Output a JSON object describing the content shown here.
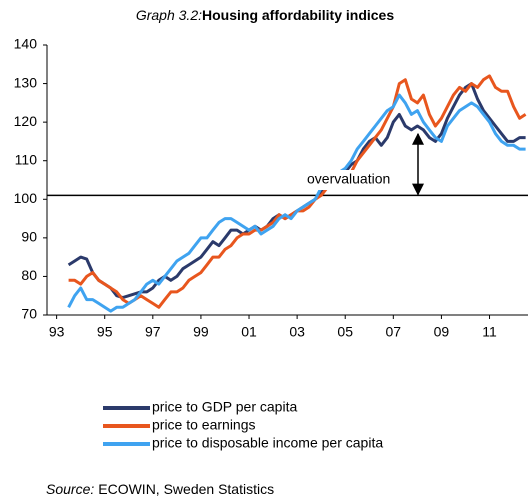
{
  "chart_data": {
    "type": "line",
    "graph_label": "Graph 3.2:",
    "title": "Housing affordability indices",
    "annotation": "overvaluation",
    "source_label": "Source:",
    "source": "ECOWIN, Sweden Statistics",
    "reference_line": 101,
    "xlim": [
      1992.6,
      2012.6
    ],
    "xticks": [
      {
        "value": 1993,
        "label": "93"
      },
      {
        "value": 1995,
        "label": "95"
      },
      {
        "value": 1997,
        "label": "97"
      },
      {
        "value": 1999,
        "label": "99"
      },
      {
        "value": 2001,
        "label": "01"
      },
      {
        "value": 2003,
        "label": "03"
      },
      {
        "value": 2005,
        "label": "05"
      },
      {
        "value": 2007,
        "label": "07"
      },
      {
        "value": 2009,
        "label": "09"
      },
      {
        "value": 2011,
        "label": "11"
      }
    ],
    "ylim": [
      70,
      140
    ],
    "yticks": [
      70,
      80,
      90,
      100,
      110,
      120,
      130,
      140
    ],
    "x": [
      1993.5,
      1993.75,
      1994,
      1994.25,
      1994.5,
      1994.75,
      1995,
      1995.25,
      1995.5,
      1995.75,
      1996,
      1996.25,
      1996.5,
      1996.75,
      1997,
      1997.25,
      1997.5,
      1997.75,
      1998,
      1998.25,
      1998.5,
      1998.75,
      1999,
      1999.25,
      1999.5,
      1999.75,
      2000,
      2000.25,
      2000.5,
      2000.75,
      2001,
      2001.25,
      2001.5,
      2001.75,
      2002,
      2002.25,
      2002.5,
      2002.75,
      2003,
      2003.25,
      2003.5,
      2003.75,
      2004,
      2004.25,
      2004.5,
      2004.75,
      2005,
      2005.25,
      2005.5,
      2005.75,
      2006,
      2006.25,
      2006.5,
      2006.75,
      2007,
      2007.25,
      2007.5,
      2007.75,
      2008,
      2008.25,
      2008.5,
      2008.75,
      2009,
      2009.25,
      2009.5,
      2009.75,
      2010,
      2010.25,
      2010.5,
      2010.75,
      2011,
      2011.25,
      2011.5,
      2011.75,
      2012,
      2012.25,
      2012.5
    ],
    "series": [
      {
        "name": "price to GDP per capita",
        "color": "#2b3a6b",
        "values": [
          83,
          84,
          85,
          84.5,
          81,
          79,
          78,
          77,
          75,
          74.5,
          75,
          75.5,
          76,
          76,
          77,
          79,
          80,
          79,
          80,
          82,
          83,
          84,
          85,
          87,
          89,
          88,
          90,
          92,
          92,
          91,
          92,
          93,
          92,
          93,
          95,
          96,
          95,
          96,
          97,
          98,
          99,
          100,
          102,
          103,
          103,
          105,
          107,
          109,
          110,
          113,
          115,
          116,
          114,
          116,
          120,
          122,
          119,
          118,
          119,
          118,
          116,
          115,
          117,
          121,
          124,
          127,
          129,
          130,
          126,
          123,
          121,
          119,
          117,
          115,
          115,
          116,
          116
        ]
      },
      {
        "name": "price to earnings",
        "color": "#e8561e",
        "values": [
          79,
          79,
          78,
          80,
          81,
          79,
          78,
          77,
          76,
          74,
          73,
          74,
          75,
          74,
          73,
          72,
          74,
          76,
          76,
          77,
          79,
          80,
          81,
          83,
          85,
          85,
          87,
          88,
          90,
          91,
          91,
          92,
          92,
          93,
          94,
          96,
          95,
          96,
          97,
          97,
          98,
          100,
          101,
          103,
          104,
          106,
          105,
          107,
          110,
          112,
          114,
          116,
          118,
          121,
          124,
          130,
          131,
          126,
          125,
          127,
          122,
          119,
          121,
          124,
          127,
          129,
          128,
          130,
          129,
          131,
          132,
          129,
          128,
          128,
          124,
          121,
          122
        ]
      },
      {
        "name": "price to disposable income per capita",
        "color": "#3fa3f0",
        "values": [
          72,
          75,
          77,
          74,
          74,
          73,
          72,
          71,
          72,
          72,
          73,
          74,
          76,
          78,
          79,
          78,
          80,
          82,
          84,
          85,
          86,
          88,
          90,
          90,
          92,
          94,
          95,
          95,
          94,
          93,
          92,
          93,
          91,
          92,
          93,
          95,
          96,
          95,
          97,
          98,
          99,
          100,
          103,
          104,
          106,
          107,
          108,
          110,
          113,
          115,
          117,
          119,
          121,
          123,
          124,
          127,
          125,
          122,
          123,
          120,
          118,
          116,
          115,
          119,
          121,
          123,
          124,
          125,
          124,
          122,
          120,
          117,
          115,
          114,
          114,
          113,
          113
        ]
      }
    ]
  }
}
